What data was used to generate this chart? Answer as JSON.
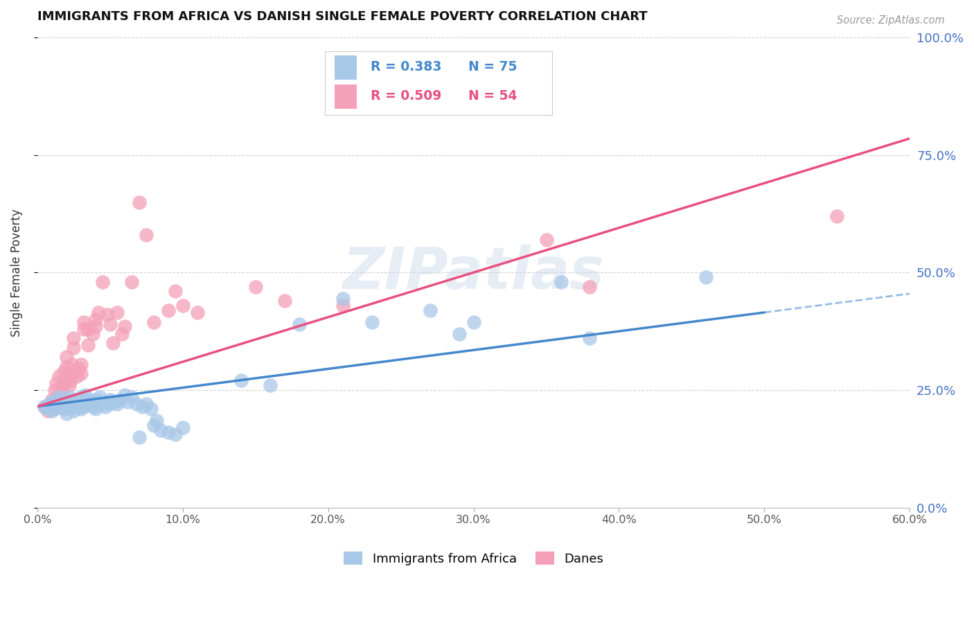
{
  "title": "IMMIGRANTS FROM AFRICA VS DANISH SINGLE FEMALE POVERTY CORRELATION CHART",
  "source": "Source: ZipAtlas.com",
  "ylabel": "Single Female Poverty",
  "xlim": [
    0.0,
    0.6
  ],
  "ylim": [
    0.0,
    1.0
  ],
  "right_ytick_color": "#4472c4",
  "grid_color": "#d0d0d0",
  "background_color": "#ffffff",
  "watermark": "ZIPatlas",
  "blue_R": 0.383,
  "blue_N": 75,
  "pink_R": 0.509,
  "pink_N": 54,
  "blue_color": "#a8c8e8",
  "pink_color": "#f4a0b8",
  "blue_line_color": "#4488cc",
  "pink_line_color": "#e85080",
  "blue_line": [
    [
      0.0,
      0.215
    ],
    [
      0.5,
      0.415
    ]
  ],
  "pink_line": [
    [
      0.0,
      0.215
    ],
    [
      0.6,
      0.785
    ]
  ],
  "blue_dash_line": [
    [
      0.5,
      0.415
    ],
    [
      0.6,
      0.455
    ]
  ],
  "blue_scatter": [
    [
      0.005,
      0.215
    ],
    [
      0.007,
      0.21
    ],
    [
      0.008,
      0.22
    ],
    [
      0.01,
      0.205
    ],
    [
      0.01,
      0.215
    ],
    [
      0.01,
      0.225
    ],
    [
      0.012,
      0.21
    ],
    [
      0.012,
      0.22
    ],
    [
      0.013,
      0.23
    ],
    [
      0.015,
      0.215
    ],
    [
      0.015,
      0.225
    ],
    [
      0.015,
      0.235
    ],
    [
      0.017,
      0.22
    ],
    [
      0.018,
      0.215
    ],
    [
      0.018,
      0.21
    ],
    [
      0.02,
      0.22
    ],
    [
      0.02,
      0.23
    ],
    [
      0.02,
      0.2
    ],
    [
      0.022,
      0.215
    ],
    [
      0.022,
      0.225
    ],
    [
      0.022,
      0.235
    ],
    [
      0.024,
      0.22
    ],
    [
      0.025,
      0.215
    ],
    [
      0.025,
      0.23
    ],
    [
      0.025,
      0.205
    ],
    [
      0.027,
      0.225
    ],
    [
      0.028,
      0.215
    ],
    [
      0.03,
      0.225
    ],
    [
      0.03,
      0.235
    ],
    [
      0.03,
      0.21
    ],
    [
      0.032,
      0.225
    ],
    [
      0.032,
      0.215
    ],
    [
      0.033,
      0.24
    ],
    [
      0.035,
      0.23
    ],
    [
      0.035,
      0.22
    ],
    [
      0.037,
      0.225
    ],
    [
      0.038,
      0.215
    ],
    [
      0.04,
      0.23
    ],
    [
      0.04,
      0.22
    ],
    [
      0.04,
      0.21
    ],
    [
      0.042,
      0.225
    ],
    [
      0.043,
      0.235
    ],
    [
      0.045,
      0.22
    ],
    [
      0.047,
      0.215
    ],
    [
      0.048,
      0.225
    ],
    [
      0.05,
      0.22
    ],
    [
      0.05,
      0.23
    ],
    [
      0.053,
      0.225
    ],
    [
      0.055,
      0.22
    ],
    [
      0.057,
      0.23
    ],
    [
      0.06,
      0.24
    ],
    [
      0.062,
      0.225
    ],
    [
      0.065,
      0.235
    ],
    [
      0.068,
      0.22
    ],
    [
      0.07,
      0.15
    ],
    [
      0.072,
      0.215
    ],
    [
      0.075,
      0.22
    ],
    [
      0.078,
      0.21
    ],
    [
      0.08,
      0.175
    ],
    [
      0.082,
      0.185
    ],
    [
      0.085,
      0.165
    ],
    [
      0.09,
      0.16
    ],
    [
      0.095,
      0.155
    ],
    [
      0.1,
      0.17
    ],
    [
      0.14,
      0.27
    ],
    [
      0.16,
      0.26
    ],
    [
      0.18,
      0.39
    ],
    [
      0.21,
      0.445
    ],
    [
      0.23,
      0.395
    ],
    [
      0.27,
      0.42
    ],
    [
      0.29,
      0.37
    ],
    [
      0.3,
      0.395
    ],
    [
      0.36,
      0.48
    ],
    [
      0.38,
      0.36
    ],
    [
      0.46,
      0.49
    ]
  ],
  "pink_scatter": [
    [
      0.005,
      0.215
    ],
    [
      0.007,
      0.205
    ],
    [
      0.008,
      0.22
    ],
    [
      0.01,
      0.21
    ],
    [
      0.01,
      0.23
    ],
    [
      0.012,
      0.25
    ],
    [
      0.013,
      0.265
    ],
    [
      0.015,
      0.24
    ],
    [
      0.015,
      0.28
    ],
    [
      0.017,
      0.255
    ],
    [
      0.018,
      0.265
    ],
    [
      0.018,
      0.29
    ],
    [
      0.02,
      0.275
    ],
    [
      0.02,
      0.3
    ],
    [
      0.02,
      0.32
    ],
    [
      0.022,
      0.26
    ],
    [
      0.022,
      0.285
    ],
    [
      0.023,
      0.27
    ],
    [
      0.024,
      0.305
    ],
    [
      0.025,
      0.34
    ],
    [
      0.025,
      0.36
    ],
    [
      0.027,
      0.28
    ],
    [
      0.028,
      0.295
    ],
    [
      0.03,
      0.285
    ],
    [
      0.03,
      0.305
    ],
    [
      0.032,
      0.38
    ],
    [
      0.032,
      0.395
    ],
    [
      0.035,
      0.345
    ],
    [
      0.035,
      0.38
    ],
    [
      0.038,
      0.37
    ],
    [
      0.04,
      0.385
    ],
    [
      0.04,
      0.4
    ],
    [
      0.042,
      0.415
    ],
    [
      0.045,
      0.48
    ],
    [
      0.048,
      0.41
    ],
    [
      0.05,
      0.39
    ],
    [
      0.052,
      0.35
    ],
    [
      0.055,
      0.415
    ],
    [
      0.058,
      0.37
    ],
    [
      0.06,
      0.385
    ],
    [
      0.065,
      0.48
    ],
    [
      0.07,
      0.65
    ],
    [
      0.075,
      0.58
    ],
    [
      0.08,
      0.395
    ],
    [
      0.09,
      0.42
    ],
    [
      0.095,
      0.46
    ],
    [
      0.1,
      0.43
    ],
    [
      0.11,
      0.415
    ],
    [
      0.15,
      0.47
    ],
    [
      0.17,
      0.44
    ],
    [
      0.21,
      0.43
    ],
    [
      0.35,
      0.57
    ],
    [
      0.38,
      0.47
    ],
    [
      0.55,
      0.62
    ]
  ]
}
